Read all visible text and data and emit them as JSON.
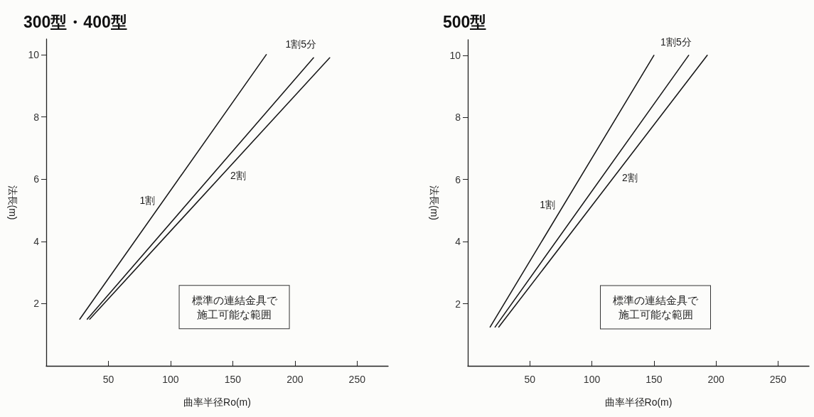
{
  "chart_data": [
    {
      "type": "line",
      "title": "300型・400型",
      "xlabel": "曲率半径Ro(m)",
      "ylabel": "法長(m)",
      "xlim": [
        0,
        275
      ],
      "ylim": [
        0,
        10.5
      ],
      "xticks": [
        50,
        100,
        150,
        200,
        250
      ],
      "yticks": [
        2,
        4,
        6,
        8,
        10
      ],
      "grid": false,
      "marker": "none",
      "annotations": [
        "標準の連結金具で施工可能な範囲"
      ],
      "series": [
        {
          "name": "1割",
          "color": "#1a1a1a",
          "x": [
            27,
            177
          ],
          "values": [
            1.5,
            10
          ]
        },
        {
          "name": "1割5分",
          "color": "#1a1a1a",
          "x": [
            33,
            215
          ],
          "values": [
            1.5,
            9.9
          ]
        },
        {
          "name": "2割",
          "color": "#1a1a1a",
          "x": [
            35,
            228
          ],
          "values": [
            1.5,
            9.9
          ]
        }
      ]
    },
    {
      "type": "line",
      "title": "500型",
      "xlabel": "曲率半径Ro(m)",
      "ylabel": "法長(m)",
      "xlim": [
        0,
        275
      ],
      "ylim": [
        0,
        10.5
      ],
      "xticks": [
        50,
        100,
        150,
        200,
        250
      ],
      "yticks": [
        2,
        4,
        6,
        8,
        10
      ],
      "grid": false,
      "marker": "none",
      "annotations": [
        "標準の連結金具で施工可能な範囲"
      ],
      "series": [
        {
          "name": "1割",
          "color": "#1a1a1a",
          "x": [
            18,
            150
          ],
          "values": [
            1.25,
            10
          ]
        },
        {
          "name": "1割5分",
          "color": "#1a1a1a",
          "x": [
            22,
            178
          ],
          "values": [
            1.25,
            10
          ]
        },
        {
          "name": "2割",
          "color": "#1a1a1a",
          "x": [
            25,
            193
          ],
          "values": [
            1.25,
            10
          ]
        }
      ]
    }
  ]
}
